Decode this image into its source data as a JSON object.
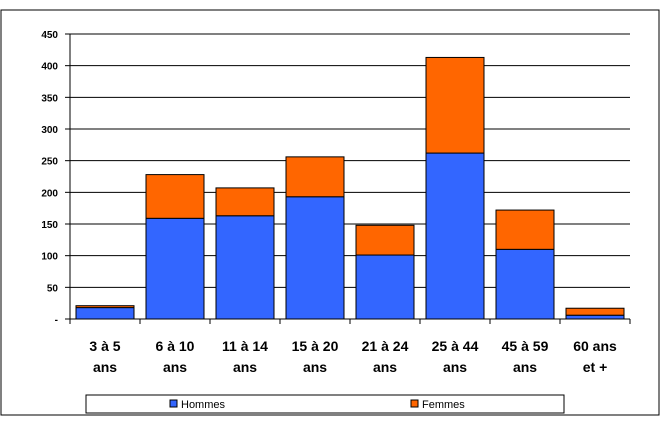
{
  "chart_data": {
    "type": "bar",
    "stacked": true,
    "title": "",
    "xlabel": "",
    "ylabel": "",
    "categories": [
      [
        "3 à 5",
        "ans"
      ],
      [
        "6 à 10",
        "ans"
      ],
      [
        "11 à 14",
        "ans"
      ],
      [
        "15 à 20",
        "ans"
      ],
      [
        "21 à 24",
        "ans"
      ],
      [
        "25 à 44",
        "ans"
      ],
      [
        "45 à 59",
        "ans"
      ],
      [
        "60 ans",
        "et +"
      ]
    ],
    "series": [
      {
        "name": "Hommes",
        "color": "#3366ff",
        "values": [
          18,
          159,
          163,
          193,
          101,
          262,
          110,
          6
        ]
      },
      {
        "name": "Femmes",
        "color": "#ff6600",
        "values": [
          3,
          69,
          44,
          63,
          47,
          151,
          62,
          11
        ]
      }
    ],
    "ylim": [
      0,
      450
    ],
    "yticks": [
      0,
      50,
      100,
      150,
      200,
      250,
      300,
      350,
      400,
      450
    ],
    "ytick_labels": [
      "-",
      "50",
      "100",
      "150",
      "200",
      "250",
      "300",
      "350",
      "400",
      "450"
    ],
    "grid": true,
    "legend_position": "bottom"
  }
}
